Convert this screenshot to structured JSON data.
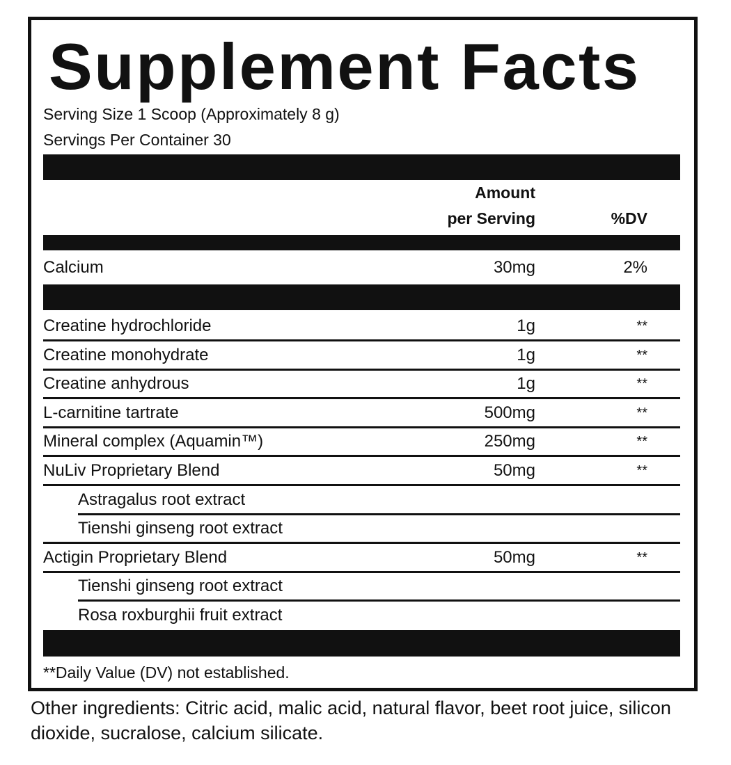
{
  "title": "Supplement Facts",
  "serving_size": "Serving Size 1 Scoop (Approximately 8 g)",
  "servings_per_container": "Servings Per Container 30",
  "header": {
    "amount_line1": "Amount",
    "amount_line2": "per Serving",
    "dv": "%DV"
  },
  "vitamins": [
    {
      "name": "Calcium",
      "amount": "30mg",
      "dv": "2%"
    }
  ],
  "ingredients": [
    {
      "name": "Creatine hydrochloride",
      "amount": "1g",
      "dv": "**"
    },
    {
      "name": "Creatine monohydrate",
      "amount": "1g",
      "dv": "**"
    },
    {
      "name": "Creatine anhydrous",
      "amount": "1g",
      "dv": "**"
    },
    {
      "name": "L-carnitine tartrate",
      "amount": "500mg",
      "dv": "**"
    },
    {
      "name": "Mineral complex (Aquamin™)",
      "amount": "250mg",
      "dv": "**"
    },
    {
      "name": "NuLiv Proprietary Blend",
      "amount": "50mg",
      "dv": "**"
    },
    {
      "name": "Astragalus root extract",
      "amount": "",
      "dv": ""
    },
    {
      "name": "Tienshi ginseng root extract",
      "amount": "",
      "dv": ""
    },
    {
      "name": "Actigin Proprietary Blend",
      "amount": "50mg",
      "dv": "**"
    },
    {
      "name": "Tienshi ginseng root extract",
      "amount": "",
      "dv": ""
    },
    {
      "name": "Rosa roxburghii fruit extract",
      "amount": "",
      "dv": ""
    }
  ],
  "footnote": "**Daily Value (DV) not established.",
  "other_ingredients": "Other ingredients: Citric acid, malic acid, natural flavor, beet root juice, silicon dioxide, sucralose, calcium silicate."
}
